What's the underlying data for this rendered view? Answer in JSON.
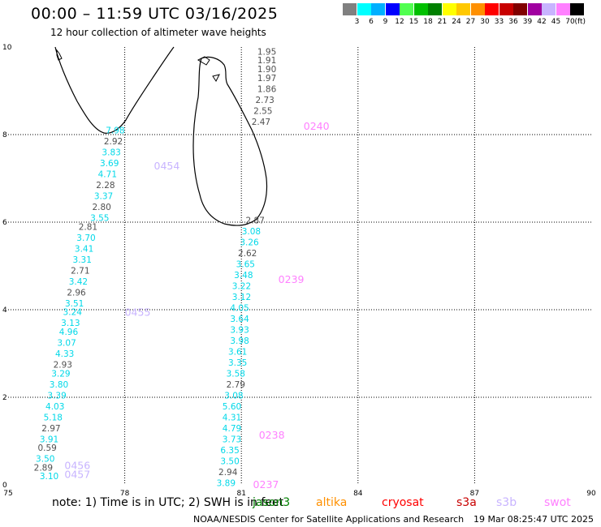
{
  "header": {
    "title": "00:00 – 11:59 UTC 03/16/2025",
    "subtitle": "12 hour collection of altimeter wave heights"
  },
  "colorbar": {
    "labels": [
      "3",
      "6",
      "9",
      "12",
      "15",
      "18",
      "21",
      "24",
      "27",
      "30",
      "33",
      "36",
      "39",
      "42",
      "45",
      "70"
    ],
    "unit": "(ft)",
    "colors": [
      "#808080",
      "#00ffff",
      "#00b0ff",
      "#0000ff",
      "#50ff50",
      "#00c000",
      "#008000",
      "#ffff00",
      "#ffc800",
      "#ff9000",
      "#ff0000",
      "#c80000",
      "#800000",
      "#a000a0",
      "#c8b4ff",
      "#ff80ff",
      "#000000"
    ]
  },
  "map": {
    "lon_range": [
      75,
      90
    ],
    "lat_range": [
      0,
      10
    ],
    "x_ticks": [
      "75",
      "78",
      "81",
      "84",
      "87",
      "90"
    ],
    "y_ticks": [
      "0",
      "2",
      "4",
      "6",
      "8",
      "10"
    ],
    "tracks": [
      {
        "label": "0240",
        "color": "#ff80ff",
        "label_lon": 82.6,
        "label_lat": 8.2,
        "points": [
          {
            "lon": 81.9,
            "lat": 9.9,
            "v": "1.95"
          },
          {
            "lon": 81.9,
            "lat": 9.7,
            "v": "1.91"
          },
          {
            "lon": 81.9,
            "lat": 9.5,
            "v": "1.90"
          },
          {
            "lon": 81.9,
            "lat": 9.3,
            "v": "1.97"
          },
          {
            "lon": 81.9,
            "lat": 9.05,
            "v": "1.86"
          },
          {
            "lon": 81.85,
            "lat": 8.8,
            "v": "2.73"
          },
          {
            "lon": 81.8,
            "lat": 8.55,
            "v": "2.55"
          },
          {
            "lon": 81.75,
            "lat": 8.3,
            "v": "2.47"
          }
        ]
      },
      {
        "label": "0454",
        "color": "#c8b4ff",
        "label_lon": 78.75,
        "label_lat": 7.3,
        "points": [
          {
            "lon": 78.0,
            "lat": 8.1,
            "v": "7.98"
          },
          {
            "lon": 77.95,
            "lat": 7.85,
            "v": "2.92"
          },
          {
            "lon": 77.9,
            "lat": 7.6,
            "v": "3.83"
          },
          {
            "lon": 77.85,
            "lat": 7.35,
            "v": "3.69"
          },
          {
            "lon": 77.8,
            "lat": 7.1,
            "v": "4.71"
          },
          {
            "lon": 77.75,
            "lat": 6.85,
            "v": "2.28"
          },
          {
            "lon": 77.7,
            "lat": 6.6,
            "v": "3.37"
          },
          {
            "lon": 77.65,
            "lat": 6.35,
            "v": "2.80"
          },
          {
            "lon": 77.6,
            "lat": 6.1,
            "v": "3.55"
          }
        ]
      },
      {
        "label": "0455",
        "color": "#c8b4ff",
        "label_lon": 78.0,
        "label_lat": 3.95,
        "points": [
          {
            "lon": 77.3,
            "lat": 5.9,
            "v": "2.81"
          },
          {
            "lon": 77.25,
            "lat": 5.65,
            "v": "3.70"
          },
          {
            "lon": 77.2,
            "lat": 5.4,
            "v": "3.41"
          },
          {
            "lon": 77.15,
            "lat": 5.15,
            "v": "3.31"
          },
          {
            "lon": 77.1,
            "lat": 4.9,
            "v": "2.71"
          },
          {
            "lon": 77.05,
            "lat": 4.65,
            "v": "3.42"
          },
          {
            "lon": 77.0,
            "lat": 4.4,
            "v": "2.96"
          },
          {
            "lon": 76.95,
            "lat": 4.15,
            "v": "3.51"
          },
          {
            "lon": 76.9,
            "lat": 3.95,
            "v": "3.24"
          }
        ]
      },
      {
        "label": "0456",
        "color": "#c8b4ff",
        "label_lon": 76.45,
        "label_lat": 0.45,
        "points": [
          {
            "lon": 76.85,
            "lat": 3.7,
            "v": "3.13"
          },
          {
            "lon": 76.8,
            "lat": 3.5,
            "v": "4.96"
          },
          {
            "lon": 76.75,
            "lat": 3.25,
            "v": "3.07"
          },
          {
            "lon": 76.7,
            "lat": 3.0,
            "v": "4.33"
          },
          {
            "lon": 76.65,
            "lat": 2.75,
            "v": "2.93"
          },
          {
            "lon": 76.6,
            "lat": 2.55,
            "v": "3.29"
          },
          {
            "lon": 76.55,
            "lat": 2.3,
            "v": "3.80"
          },
          {
            "lon": 76.5,
            "lat": 2.05,
            "v": "3.39"
          },
          {
            "lon": 76.45,
            "lat": 1.8,
            "v": "4.03"
          },
          {
            "lon": 76.4,
            "lat": 1.55,
            "v": "5.18"
          },
          {
            "lon": 76.35,
            "lat": 1.3,
            "v": "2.97"
          },
          {
            "lon": 76.3,
            "lat": 1.05,
            "v": "3.91"
          },
          {
            "lon": 76.25,
            "lat": 0.85,
            "v": "0.59"
          },
          {
            "lon": 76.2,
            "lat": 0.6,
            "v": "3.50"
          },
          {
            "lon": 76.15,
            "lat": 0.4,
            "v": "2.89"
          }
        ]
      },
      {
        "label": "0457",
        "color": "#c8b4ff",
        "label_lon": 76.45,
        "label_lat": 0.25,
        "points": [
          {
            "lon": 76.3,
            "lat": 0.2,
            "v": "3.10"
          }
        ]
      },
      {
        "label": "0239",
        "color": "#ff80ff",
        "label_lon": 81.95,
        "label_lat": 4.7,
        "points": [
          {
            "lon": 81.6,
            "lat": 6.05,
            "v": "2.87"
          },
          {
            "lon": 81.5,
            "lat": 5.8,
            "v": "3.08"
          },
          {
            "lon": 81.45,
            "lat": 5.55,
            "v": "3.26"
          },
          {
            "lon": 81.4,
            "lat": 5.3,
            "v": "2.62"
          },
          {
            "lon": 81.35,
            "lat": 5.05,
            "v": "3.65"
          },
          {
            "lon": 81.3,
            "lat": 4.8,
            "v": "3.48"
          },
          {
            "lon": 81.25,
            "lat": 4.55,
            "v": "3.22"
          },
          {
            "lon": 81.25,
            "lat": 4.3,
            "v": "3.12"
          },
          {
            "lon": 81.2,
            "lat": 4.05,
            "v": "4.05"
          }
        ]
      },
      {
        "label": "0238",
        "color": "#ff80ff",
        "label_lon": 81.45,
        "label_lat": 1.15,
        "points": [
          {
            "lon": 81.2,
            "lat": 3.8,
            "v": "3.64"
          },
          {
            "lon": 81.2,
            "lat": 3.55,
            "v": "3.93"
          },
          {
            "lon": 81.2,
            "lat": 3.3,
            "v": "3.98"
          },
          {
            "lon": 81.15,
            "lat": 3.05,
            "v": "3.61"
          },
          {
            "lon": 81.15,
            "lat": 2.8,
            "v": "3.35"
          },
          {
            "lon": 81.1,
            "lat": 2.55,
            "v": "3.58"
          },
          {
            "lon": 81.1,
            "lat": 2.3,
            "v": "2.79"
          },
          {
            "lon": 81.05,
            "lat": 2.05,
            "v": "3.08"
          },
          {
            "lon": 81.0,
            "lat": 1.8,
            "v": "5.60"
          },
          {
            "lon": 81.0,
            "lat": 1.55,
            "v": "4.31"
          },
          {
            "lon": 81.0,
            "lat": 1.3,
            "v": "4.79"
          },
          {
            "lon": 81.0,
            "lat": 1.05,
            "v": "3.73"
          },
          {
            "lon": 80.95,
            "lat": 0.8,
            "v": "6.35"
          },
          {
            "lon": 80.95,
            "lat": 0.55,
            "v": "3.50"
          },
          {
            "lon": 80.9,
            "lat": 0.3,
            "v": "2.94"
          }
        ]
      },
      {
        "label": "0237",
        "color": "#ff80ff",
        "label_lon": 81.3,
        "label_lat": 0.02,
        "points": [
          {
            "lon": 80.85,
            "lat": 0.05,
            "v": "3.89"
          }
        ]
      }
    ]
  },
  "footer": {
    "note": "note:  1) Time is in UTC; 2) SWH is in feet",
    "satellites": [
      {
        "name": "jason3",
        "color": "#008000"
      },
      {
        "name": "altika",
        "color": "#ff9000"
      },
      {
        "name": "cryosat",
        "color": "#ff0000"
      },
      {
        "name": "s3a",
        "color": "#c80000"
      },
      {
        "name": "s3b",
        "color": "#c8b4ff"
      },
      {
        "name": "swot",
        "color": "#ff80ff"
      }
    ],
    "credit": "NOAA/NESDIS Center for Satellite Applications and Research",
    "timestamp": "19 Mar 08:25:47 UTC 2025"
  }
}
